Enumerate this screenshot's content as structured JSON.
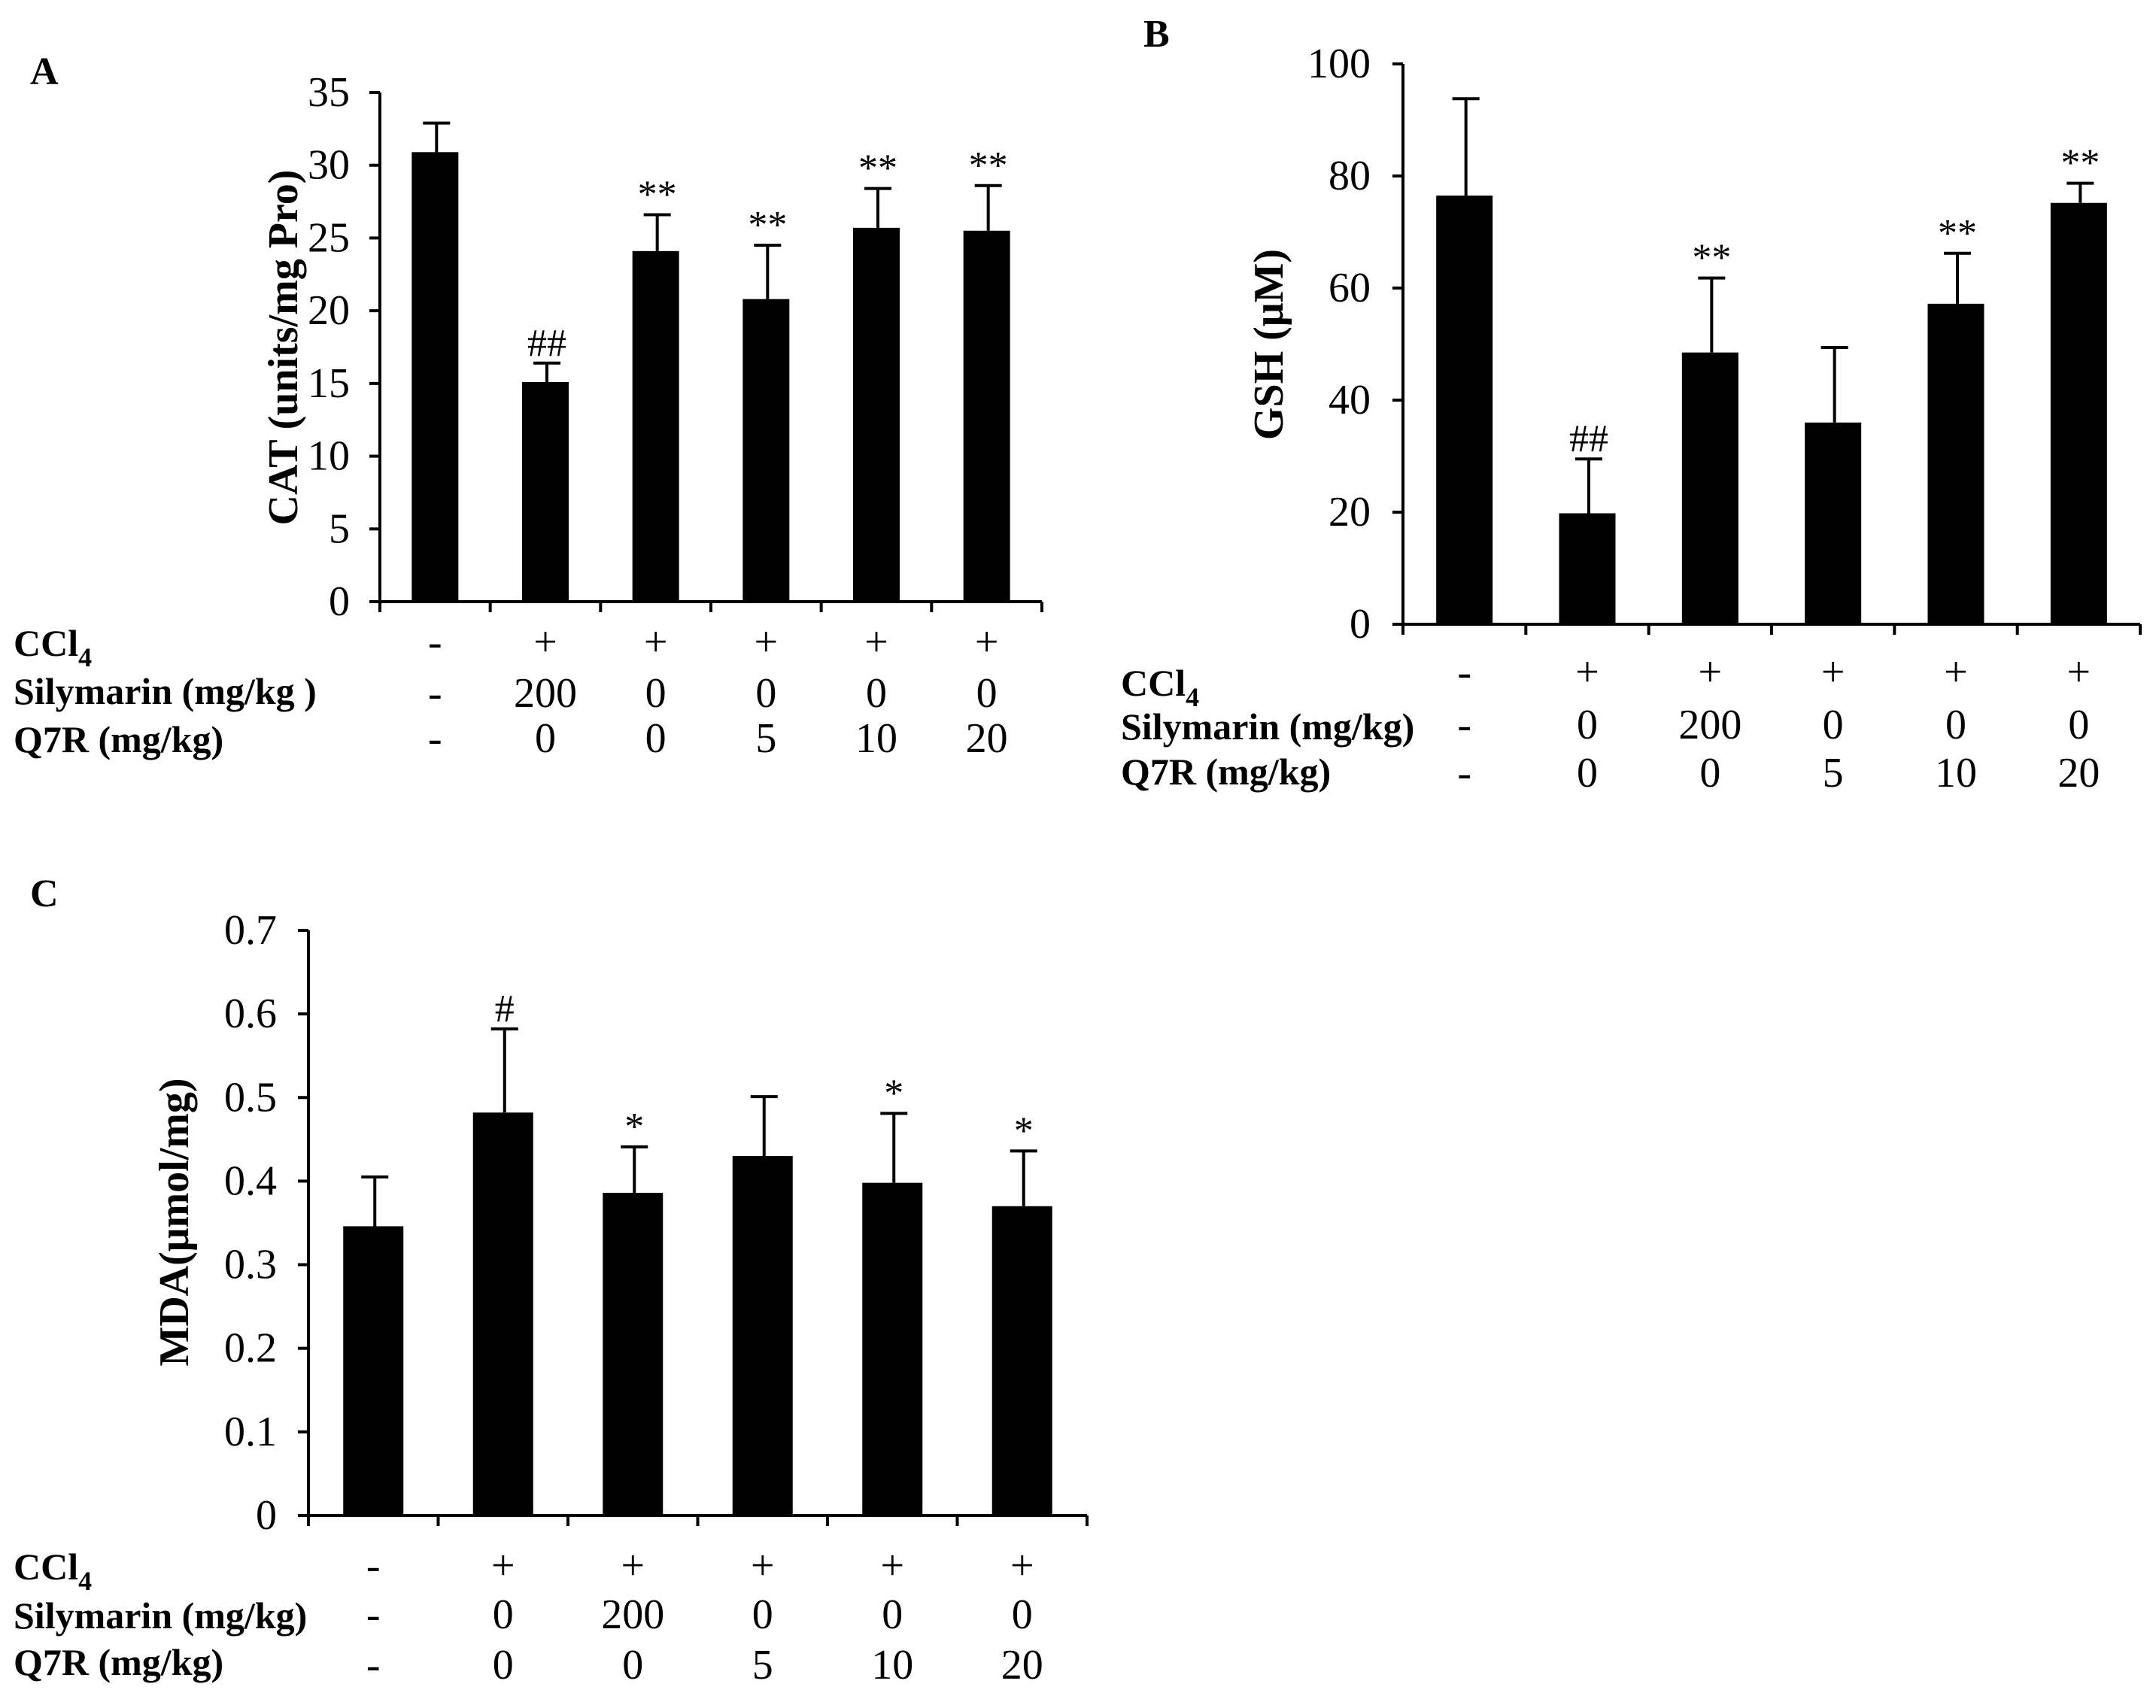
{
  "colors": {
    "bar": "#000000",
    "axis": "#000000",
    "background": "#ffffff"
  },
  "chart_data": [
    {
      "type": "bar",
      "panel": "A",
      "title": "",
      "ylabel": "CAT (units/mg Pro)",
      "ylim": [
        0,
        35
      ],
      "yticks": [
        0,
        5,
        10,
        15,
        20,
        25,
        30,
        35
      ],
      "values": [
        30.9,
        15.1,
        24.1,
        20.8,
        25.7,
        25.5
      ],
      "errors": [
        2.0,
        1.3,
        2.5,
        3.7,
        2.7,
        3.1
      ],
      "significance": [
        "",
        "##",
        "**",
        "**",
        "**",
        "**"
      ],
      "rows": [
        {
          "label": "CCl",
          "sub": "4",
          "values": [
            "-",
            "+",
            "+",
            "+",
            "+",
            "+"
          ]
        },
        {
          "label": "Silymarin (mg/kg )",
          "sub": "",
          "values": [
            "-",
            "200",
            "0",
            "0",
            "0",
            "0"
          ]
        },
        {
          "label": "Q7R (mg/kg)",
          "sub": "",
          "values": [
            "-",
            "0",
            "0",
            "5",
            "10",
            "20"
          ]
        }
      ]
    },
    {
      "type": "bar",
      "panel": "B",
      "title": "",
      "ylabel": "GSH (μM)",
      "ylim": [
        0,
        100
      ],
      "yticks": [
        0,
        20,
        40,
        60,
        80,
        100
      ],
      "values": [
        76.5,
        19.8,
        48.5,
        36.0,
        57.2,
        75.2
      ],
      "errors": [
        17.3,
        9.7,
        13.3,
        13.4,
        9.0,
        3.5
      ],
      "significance": [
        "",
        "##",
        "**",
        "",
        "**",
        "**"
      ],
      "rows": [
        {
          "label": "CCl",
          "sub": "4",
          "values": [
            "-",
            "+",
            "+",
            "+",
            "+",
            "+"
          ]
        },
        {
          "label": "Silymarin (mg/kg)",
          "sub": "",
          "values": [
            "-",
            "0",
            "200",
            "0",
            "0",
            "0"
          ]
        },
        {
          "label": "Q7R (mg/kg)",
          "sub": "",
          "values": [
            "-",
            "0",
            "0",
            "5",
            "10",
            "20"
          ]
        }
      ]
    },
    {
      "type": "bar",
      "panel": "C",
      "title": "",
      "ylabel": "MDA(μmol/mg)",
      "ylim": [
        0,
        0.7
      ],
      "yticks": [
        0,
        0.1,
        0.2,
        0.3,
        0.4,
        0.5,
        0.6,
        0.7
      ],
      "values": [
        0.346,
        0.482,
        0.386,
        0.43,
        0.398,
        0.37
      ],
      "errors": [
        0.059,
        0.1,
        0.055,
        0.071,
        0.083,
        0.066
      ],
      "significance": [
        "",
        "#",
        "*",
        "",
        "*",
        "*"
      ],
      "rows": [
        {
          "label": "CCl",
          "sub": "4",
          "values": [
            "-",
            "+",
            "+",
            "+",
            "+",
            "+"
          ]
        },
        {
          "label": "Silymarin (mg/kg)",
          "sub": "",
          "values": [
            "-",
            "0",
            "200",
            "0",
            "0",
            "0"
          ]
        },
        {
          "label": "Q7R (mg/kg)",
          "sub": "",
          "values": [
            "-",
            "0",
            "0",
            "5",
            "10",
            "20"
          ]
        }
      ]
    }
  ]
}
